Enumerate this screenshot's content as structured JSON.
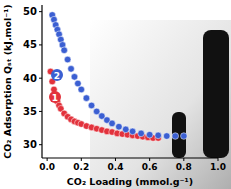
{
  "chart_data": {
    "type": "scatter",
    "x_label": "CO₂ Loading (mmol.g⁻¹)",
    "y_label": "CO₂ Adsorption Qₛₜ (kJ.mol⁻¹)",
    "xlim": [
      -0.03,
      1.0
    ],
    "ylim": [
      28,
      51
    ],
    "xticks": [
      {
        "value": 0,
        "label": "0.0"
      },
      0.2,
      0.4,
      0.6,
      0.8,
      {
        "value": 1,
        "label": "1.0"
      }
    ],
    "yticks": [
      30,
      35,
      40,
      45,
      50
    ],
    "marker": "circle",
    "series": [
      {
        "name": "1",
        "color": "#e2323c",
        "x": [
          0.02,
          0.03,
          0.04,
          0.05,
          0.06,
          0.07,
          0.08,
          0.1,
          0.12,
          0.14,
          0.16,
          0.18,
          0.2,
          0.23,
          0.26,
          0.29,
          0.32,
          0.35,
          0.38,
          0.41,
          0.44,
          0.47,
          0.5,
          0.53,
          0.56,
          0.59,
          0.62,
          0.65
        ],
        "values": [
          41,
          39.5,
          38.3,
          37.3,
          36.5,
          35.9,
          35.4,
          34.7,
          34.2,
          33.8,
          33.5,
          33.3,
          33.1,
          32.8,
          32.6,
          32.4,
          32.2,
          32.0,
          31.9,
          31.7,
          31.6,
          31.5,
          31.4,
          31.3,
          31.2,
          31.1,
          31.0,
          31.0
        ]
      },
      {
        "name": "2",
        "color": "#3b5fd2",
        "x": [
          0.03,
          0.04,
          0.05,
          0.06,
          0.07,
          0.08,
          0.09,
          0.1,
          0.12,
          0.14,
          0.16,
          0.18,
          0.2,
          0.23,
          0.26,
          0.29,
          0.32,
          0.35,
          0.38,
          0.42,
          0.46,
          0.5,
          0.55,
          0.6,
          0.65,
          0.7,
          0.75,
          0.8
        ],
        "values": [
          49.5,
          48.8,
          48,
          47.3,
          46.6,
          45.8,
          45,
          44.2,
          42.8,
          41.4,
          40.2,
          39.2,
          38.3,
          37,
          35.9,
          35,
          34.3,
          33.7,
          33.2,
          32.7,
          32.3,
          32,
          31.7,
          31.5,
          31.4,
          31.3,
          31.3,
          31.3
        ]
      }
    ]
  }
}
